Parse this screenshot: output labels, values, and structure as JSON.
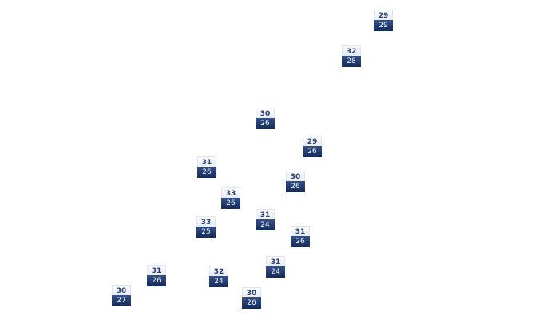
{
  "colors": {
    "high_bg": "#eef2fa",
    "high_text": "#2a3f73",
    "low_bg": "#1f3566",
    "low_text": "#ffffff"
  },
  "markers": [
    {
      "high": "29",
      "low": "29"
    },
    {
      "high": "32",
      "low": "28"
    },
    {
      "high": "30",
      "low": "26"
    },
    {
      "high": "29",
      "low": "26"
    },
    {
      "high": "31",
      "low": "26"
    },
    {
      "high": "30",
      "low": "26"
    },
    {
      "high": "33",
      "low": "26"
    },
    {
      "high": "31",
      "low": "24"
    },
    {
      "high": "33",
      "low": "25"
    },
    {
      "high": "31",
      "low": "26"
    },
    {
      "high": "31",
      "low": "24"
    },
    {
      "high": "31",
      "low": "26"
    },
    {
      "high": "32",
      "low": "24"
    },
    {
      "high": "30",
      "low": "26"
    },
    {
      "high": "30",
      "low": "27"
    }
  ]
}
